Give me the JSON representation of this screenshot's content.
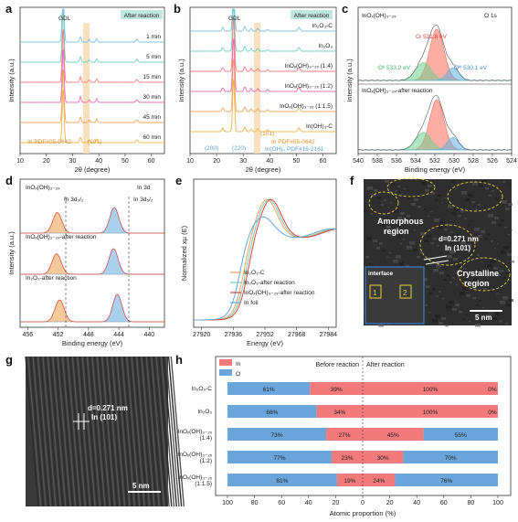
{
  "colors": {
    "series": [
      "#7ec0e6",
      "#6fcfbf",
      "#ff7b7b",
      "#e86bb0",
      "#f0a55a",
      "#f4b24a"
    ],
    "o1": "#ff6b5b",
    "o2": "#6fcf8f",
    "o3": "#5fb0e0",
    "hbar_in": "#f27a7a",
    "hbar_o": "#6aa6dc",
    "tem_bg": "#2c2c2c",
    "highlight": "#f6d9b0"
  },
  "panels": {
    "a": {
      "letter": "a",
      "tag": "After reaction",
      "ref_label": "GDL",
      "ref_label2": "(101)",
      "pdf_label": "In PDF#05-0642",
      "xlabel": "2θ (degree)",
      "ylabel": "Intensity (a.u.)",
      "series_labels": [
        "1 min",
        "5 min",
        "15 min",
        "30 min",
        "45 min",
        "60 min"
      ],
      "xticks": [
        "10",
        "20",
        "30",
        "40",
        "50",
        "60"
      ]
    },
    "b": {
      "letter": "b",
      "tag": "After reaction",
      "ref_label": "GDL",
      "series_labels": [
        "In₂O₃-C",
        "In₂O₃",
        "InOₓ(OH)₃₋₂ₓ (1:4)",
        "InOₓ(OH)₃₋₂ₓ (1:2)",
        "InOₓ(OH)₃₋₂ₓ (1:1.5)",
        "In(OH)₃-C"
      ],
      "annot": [
        "(200)",
        "(220)",
        "(101)",
        "In PDF#05-0642",
        "In(OH)₃ PDF#16-2161"
      ],
      "xlabel": "2θ (degree)",
      "ylabel": "Intensity (a.u.)",
      "xticks": [
        "10",
        "20",
        "30",
        "40",
        "50",
        "60"
      ]
    },
    "c": {
      "letter": "c",
      "title": "InOₓ(OH)₃₋₂ₓ",
      "title2": "O 1s",
      "peak_labels": [
        "Oₗ 531.8 eV",
        "Oᴵᴵ 533.2 eV",
        "Oᴵᴵᴵ 530.1 eV"
      ],
      "lower_label": "InOₓ(OH)₃₋₂ₓ-after reaction",
      "xlabel": "Binding energy (eV)",
      "ylabel": "Intensity (a.u.)",
      "xticks": [
        "540",
        "538",
        "536",
        "534",
        "532",
        "530",
        "528",
        "526",
        "524"
      ]
    },
    "d": {
      "letter": "d",
      "title": "InOₓ(OH)₃₋₂ₓ",
      "title2": "In 3d",
      "labels": [
        "In 3d₃/₂",
        "In 3d₅/₂",
        "InOₓ(OH)₃₋₂ₓ-after reaction",
        "In₂O₃-after reaction"
      ],
      "xlabel": "Binding energy (eV)",
      "ylabel": "Intensity (a.u.)",
      "xticks": [
        "456",
        "452",
        "448",
        "444",
        "440"
      ]
    },
    "e": {
      "letter": "e",
      "legend": [
        "In₂O₃-C",
        "In₂O₃-after reaction",
        "InOₓ(OH)₃₋₂ₓ-after reaction",
        "In foil"
      ],
      "xlabel": "Energy (eV)",
      "ylabel": "Normalized xμ (E)",
      "xticks": [
        "27920",
        "27936",
        "27952",
        "27968",
        "27984"
      ]
    },
    "f": {
      "letter": "f",
      "labels": [
        "Amorphous",
        "region",
        "d=0.271 nm",
        "In (101)",
        "Crystalline",
        "region",
        "interface",
        "1",
        "2",
        "5 nm"
      ]
    },
    "g": {
      "letter": "g",
      "labels": [
        "d=0.271 nm",
        "In (101)",
        "5 nm"
      ]
    },
    "h": {
      "letter": "h",
      "legend": [
        "In",
        "O"
      ],
      "headers": [
        "Before reaction",
        "After reaction"
      ],
      "xlabel": "Atomic proportion (%)",
      "xticks": [
        "100",
        "80",
        "60",
        "40",
        "20",
        "0",
        "20",
        "40",
        "60",
        "80",
        "100"
      ],
      "rows": [
        {
          "label": "In₂O₃-C",
          "before_o": 61,
          "before_in": 39,
          "after_in": 100,
          "after_o": 0,
          "t_bo": "61%",
          "t_bi": "39%",
          "t_ai": "100%",
          "t_ao": "0%"
        },
        {
          "label": "In₂O₃",
          "before_o": 66,
          "before_in": 34,
          "after_in": 100,
          "after_o": 0,
          "t_bo": "66%",
          "t_bi": "34%",
          "t_ai": "100%",
          "t_ao": "0%"
        },
        {
          "label": "InOₓ(OH)₃₋₂ₓ",
          "label2": "(1:4)",
          "before_o": 73,
          "before_in": 27,
          "after_in": 45,
          "after_o": 55,
          "t_bo": "73%",
          "t_bi": "27%",
          "t_ai": "45%",
          "t_ao": "55%"
        },
        {
          "label": "InOₓ(OH)₃₋₂ₓ",
          "label2": "(1:2)",
          "before_o": 77,
          "before_in": 23,
          "after_in": 30,
          "after_o": 70,
          "t_bo": "77%",
          "t_bi": "23%",
          "t_ai": "30%",
          "t_ao": "70%"
        },
        {
          "label": "InOₓ(OH)₃₋₂ₓ",
          "label2": "(1:1.5)",
          "before_o": 81,
          "before_in": 19,
          "after_in": 24,
          "after_o": 76,
          "t_bo": "81%",
          "t_bi": "19%",
          "t_ai": "24%",
          "t_ao": "76%"
        }
      ]
    }
  },
  "chart_data": [
    {
      "type": "line",
      "panel": "a",
      "xlabel": "2θ (degree)",
      "ylabel": "Intensity (a.u.)",
      "xlim": [
        10,
        65
      ],
      "series": [
        {
          "name": "1 min"
        },
        {
          "name": "5 min"
        },
        {
          "name": "15 min"
        },
        {
          "name": "30 min"
        },
        {
          "name": "45 min"
        },
        {
          "name": "60 min"
        }
      ]
    },
    {
      "type": "line",
      "panel": "b",
      "xlabel": "2θ (degree)",
      "ylabel": "Intensity (a.u.)",
      "xlim": [
        10,
        65
      ],
      "series": [
        {
          "name": "In₂O₃-C"
        },
        {
          "name": "In₂O₃"
        },
        {
          "name": "InOₓ(OH)₃₋₂ₓ (1:4)"
        },
        {
          "name": "InOₓ(OH)₃₋₂ₓ (1:2)"
        },
        {
          "name": "InOₓ(OH)₃₋₂ₓ (1:1.5)"
        },
        {
          "name": "In(OH)₃-C"
        }
      ]
    },
    {
      "type": "line",
      "panel": "c",
      "xlabel": "Binding energy (eV)",
      "ylabel": "Intensity (a.u.)",
      "xlim": [
        540,
        524
      ],
      "peaks": [
        531.8,
        533.2,
        530.1
      ]
    },
    {
      "type": "line",
      "panel": "d",
      "xlabel": "Binding energy (eV)",
      "ylabel": "Intensity (a.u.)",
      "xlim": [
        456,
        438
      ]
    },
    {
      "type": "line",
      "panel": "e",
      "xlabel": "Energy (eV)",
      "ylabel": "Normalized xμ (E)",
      "xlim": [
        27920,
        27984
      ],
      "series": [
        {
          "name": "In₂O₃-C"
        },
        {
          "name": "In₂O₃-after reaction"
        },
        {
          "name": "InOₓ(OH)₃₋₂ₓ-after reaction"
        },
        {
          "name": "In foil"
        }
      ]
    },
    {
      "type": "bar",
      "panel": "h",
      "xlabel": "Atomic proportion (%)",
      "categories": [
        "In₂O₃-C",
        "In₂O₃",
        "InOₓ(OH)₃₋₂ₓ (1:4)",
        "InOₓ(OH)₃₋₂ₓ (1:2)",
        "InOₓ(OH)₃₋₂ₓ (1:1.5)"
      ],
      "series": [
        {
          "name": "Before reaction O",
          "values": [
            61,
            66,
            73,
            77,
            81
          ]
        },
        {
          "name": "Before reaction In",
          "values": [
            39,
            34,
            27,
            23,
            19
          ]
        },
        {
          "name": "After reaction In",
          "values": [
            100,
            100,
            45,
            30,
            24
          ]
        },
        {
          "name": "After reaction O",
          "values": [
            0,
            0,
            55,
            70,
            76
          ]
        }
      ]
    }
  ]
}
